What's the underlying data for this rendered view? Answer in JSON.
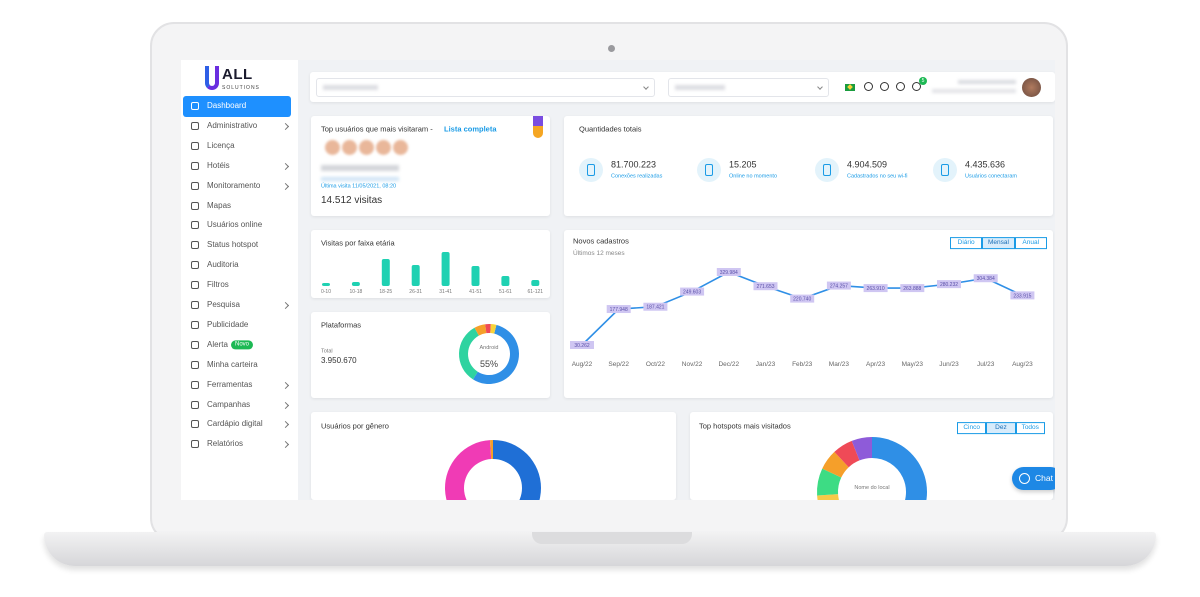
{
  "logo": {
    "name": "ALL",
    "tagline": "SOLUTIONS"
  },
  "sidebar": {
    "items": [
      {
        "label": "Dashboard",
        "active": true
      },
      {
        "label": "Administrativo",
        "submenu": true
      },
      {
        "label": "Licença"
      },
      {
        "label": "Hotéis",
        "submenu": true
      },
      {
        "label": "Monitoramento",
        "submenu": true
      },
      {
        "label": "Mapas"
      },
      {
        "label": "Usuários online"
      },
      {
        "label": "Status hotspot"
      },
      {
        "label": "Auditoria"
      },
      {
        "label": "Filtros"
      },
      {
        "label": "Pesquisa",
        "submenu": true
      },
      {
        "label": "Publicidade"
      },
      {
        "label": "Alerta",
        "badge": "Novo"
      },
      {
        "label": "Minha carteira"
      },
      {
        "label": "Ferramentas",
        "submenu": true
      },
      {
        "label": "Campanhas",
        "submenu": true
      },
      {
        "label": "Cardápio digital",
        "submenu": true
      },
      {
        "label": "Relatórios",
        "submenu": true
      }
    ]
  },
  "topbar": {
    "notifications": 5
  },
  "top_users": {
    "title": "Top usuários que mais visitaram -",
    "link": "Lista completa",
    "last_visit": "Última visita 11/05/2021, 08:20",
    "visits": "14.512 visitas"
  },
  "totals": {
    "title": "Quantidades totais",
    "stats": [
      {
        "value": "81.700.223",
        "label": "Conexões realizadas"
      },
      {
        "value": "15.205",
        "label": "Online no momento"
      },
      {
        "value": "4.904.509",
        "label": "Cadastrados no seu wi-fi"
      },
      {
        "value": "4.435.636",
        "label": "Usuários conectaram"
      }
    ]
  },
  "age_visits": {
    "type": "bar",
    "title": "Visitas por faixa etária",
    "categories": [
      "0-10",
      "10-18",
      "18-25",
      "26-31",
      "31-41",
      "41-51",
      "51-61",
      "61-121"
    ],
    "values": [
      3,
      4,
      27,
      21,
      34,
      20,
      10,
      6
    ],
    "color": "#1fd1b2"
  },
  "platforms": {
    "type": "pie",
    "title": "Plataformas",
    "total_label": "Total",
    "total": "3.950.670",
    "center_label": "Android",
    "center_value": "55%",
    "values": [
      55,
      33,
      6,
      3,
      3
    ],
    "colors": [
      "#2f8fe6",
      "#2ed3a0",
      "#f59f2a",
      "#ef4a57",
      "#f7d23a"
    ]
  },
  "new_signups": {
    "type": "line",
    "title": "Novos cadastros",
    "subtitle": "Últimos 12 meses",
    "buttons": [
      "Diário",
      "Mensal",
      "Anual"
    ],
    "selected": 1,
    "categories": [
      "Aug/22",
      "Sep/22",
      "Oct/22",
      "Nov/22",
      "Dec/22",
      "Jan/23",
      "Feb/23",
      "Mar/23",
      "Apr/23",
      "May/23",
      "Jun/23",
      "Jul/23",
      "Aug/23"
    ],
    "values": [
      30262,
      177948,
      187421,
      249603,
      329984,
      271653,
      220740,
      274257,
      263910,
      263888,
      280232,
      304384,
      233915
    ],
    "value_labels": [
      "30.262",
      "177.948",
      "187.421",
      "249.603",
      "329.984",
      "271.653",
      "220.740",
      "274.257",
      "263.910",
      "263.888",
      "280.232",
      "304.384",
      "233.915"
    ],
    "color": "#2f8fe6"
  },
  "gender": {
    "type": "pie",
    "title": "Usuários por gênero",
    "values": [
      50,
      49,
      1
    ],
    "colors": [
      "#1f6fd6",
      "#f03bb5",
      "#f59f2a"
    ]
  },
  "hotspots": {
    "type": "pie",
    "title": "Top hotspots mais visitados",
    "buttons": [
      "Cinco",
      "Dez",
      "Todos"
    ],
    "selected": 1,
    "center_label": "Nome do local",
    "values": [
      36,
      14,
      12,
      12,
      8,
      6,
      6,
      6
    ],
    "colors": [
      "#2f8fe6",
      "#2ed3a0",
      "#ff6fa8",
      "#f7c948",
      "#3ddc84",
      "#f59f2a",
      "#ef4a57",
      "#8e5bd9"
    ]
  },
  "chat": {
    "label": "Chat"
  }
}
